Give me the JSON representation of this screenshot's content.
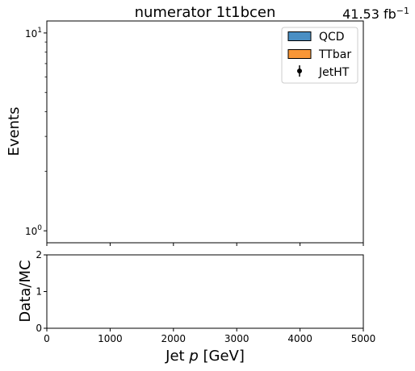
{
  "chart_data": {
    "type": "bar",
    "histtype": "stacked histogram with data points and ratio panel",
    "title": "numerator  1t1bcen",
    "luminosity_label": "41.53 fb",
    "luminosity_exponent": "−1",
    "main_panel": {
      "ylabel": "Events",
      "yscale": "log",
      "ylim": [
        0.87,
        11.5
      ],
      "yticks_major": [
        {
          "value": 1,
          "base": "10",
          "exp": "0"
        },
        {
          "value": 10,
          "base": "10",
          "exp": "1"
        }
      ],
      "yticks_minor": [
        2,
        3,
        4,
        5,
        6,
        7,
        8,
        9
      ],
      "xlim": [
        0,
        5000
      ],
      "legend_position": "upper-right",
      "series": [
        {
          "name": "QCD",
          "kind": "stacked-fill",
          "color": "#4a8fc4",
          "values": []
        },
        {
          "name": "TTbar",
          "kind": "stacked-fill",
          "color": "#f99636",
          "values": []
        },
        {
          "name": "JetHT",
          "kind": "data-points",
          "color": "#000000",
          "values": []
        }
      ]
    },
    "ratio_panel": {
      "ylabel": "Data/MC",
      "ylim": [
        0,
        2
      ],
      "yticks": [
        "0",
        "1",
        "2"
      ],
      "xlabel_prefix": "Jet ",
      "xlabel_symbol": "p",
      "xlabel_suffix": " [GeV]",
      "xlim": [
        0,
        5000
      ],
      "xticks": [
        "0",
        "1000",
        "2000",
        "3000",
        "4000",
        "5000"
      ],
      "values": []
    }
  }
}
